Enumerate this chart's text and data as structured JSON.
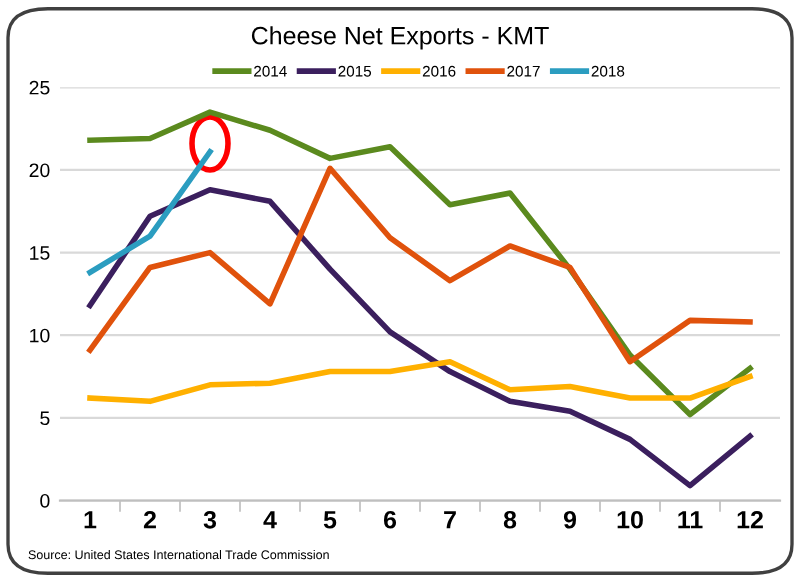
{
  "chart_data": {
    "type": "line",
    "title": "Cheese Net Exports - KMT",
    "categories": [
      "1",
      "2",
      "3",
      "4",
      "5",
      "6",
      "7",
      "8",
      "9",
      "10",
      "11",
      "12"
    ],
    "series": [
      {
        "name": "2014",
        "color": "#5b8a1e",
        "values": [
          21.8,
          21.9,
          23.5,
          22.4,
          20.7,
          21.4,
          17.9,
          18.6,
          14.0,
          8.8,
          5.2,
          8.0
        ]
      },
      {
        "name": "2015",
        "color": "#3b1f5e",
        "values": [
          11.8,
          17.2,
          18.8,
          18.1,
          14.0,
          10.2,
          7.8,
          6.0,
          5.4,
          3.7,
          0.9,
          3.9
        ]
      },
      {
        "name": "2016",
        "color": "#ffb000",
        "values": [
          6.2,
          6.0,
          7.0,
          7.1,
          7.8,
          7.8,
          8.4,
          6.7,
          6.9,
          6.2,
          6.2,
          7.5
        ]
      },
      {
        "name": "2017",
        "color": "#e0520c",
        "values": [
          9.1,
          14.1,
          15.0,
          11.9,
          20.1,
          15.9,
          13.3,
          15.4,
          14.1,
          8.4,
          10.9,
          10.8
        ]
      },
      {
        "name": "2018",
        "color": "#2b9dc0",
        "values": [
          13.8,
          16.0,
          21.1,
          null,
          null,
          null,
          null,
          null,
          null,
          null,
          null,
          null
        ]
      }
    ],
    "ylim": [
      0,
      25
    ],
    "yticks": [
      0,
      5,
      10,
      15,
      20,
      25
    ],
    "grid": "y",
    "legend": "top",
    "marker": "none",
    "line_style": "solid",
    "annotations": [
      "Source: United States International Trade Commission"
    ]
  }
}
